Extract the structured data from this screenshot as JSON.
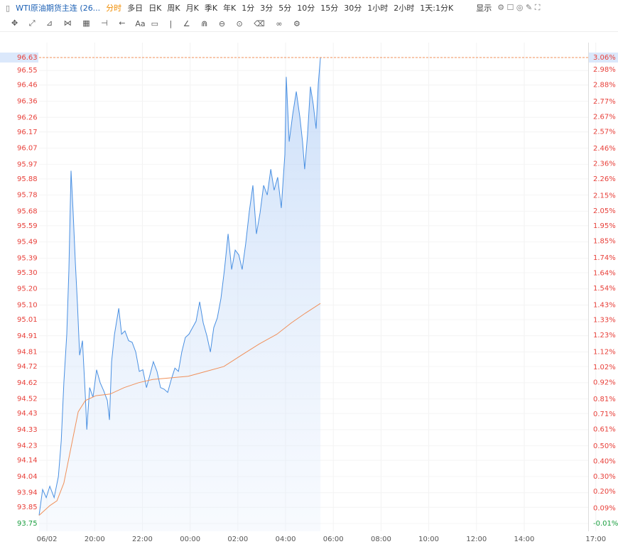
{
  "toolbar": {
    "symbol": "WTI原油期货主连 (26...",
    "periods": [
      "分时",
      "多日",
      "日K",
      "周K",
      "月K",
      "季K",
      "年K",
      "1分",
      "3分",
      "5分",
      "10分",
      "15分",
      "30分",
      "1小时",
      "2小时",
      "1天:1分K"
    ],
    "display": "显示",
    "text_tool": "Aa"
  },
  "chart_data": {
    "type": "line",
    "xlim": [
      -0.33,
      22.68
    ],
    "xticks": [
      {
        "value": 0,
        "label": "06/02"
      },
      {
        "value": 2,
        "label": "20:00"
      },
      {
        "value": 4,
        "label": "22:00"
      },
      {
        "value": 6,
        "label": "00:00"
      },
      {
        "value": 8,
        "label": "02:00"
      },
      {
        "value": 10,
        "label": "04:00"
      },
      {
        "value": 12,
        "label": "06:00"
      },
      {
        "value": 14,
        "label": "08:00"
      },
      {
        "value": 16,
        "label": "10:00"
      },
      {
        "value": 18,
        "label": "12:00"
      },
      {
        "value": 20,
        "label": "14:00"
      },
      {
        "value": 23,
        "label": "17:00"
      }
    ],
    "ylim": [
      93.75,
      96.63
    ],
    "yticks": [
      96.63,
      96.55,
      96.46,
      96.36,
      96.26,
      96.17,
      96.07,
      95.97,
      95.88,
      95.78,
      95.68,
      95.59,
      95.49,
      95.39,
      {
        "value": 95.3,
        "label": "95.30"
      },
      {
        "value": 95.2,
        "label": "95.20"
      },
      {
        "value": 95.1,
        "label": "95.10"
      },
      95.01,
      94.91,
      94.81,
      94.72,
      94.62,
      94.52,
      94.43,
      94.33,
      94.23,
      94.14,
      94.04,
      93.94,
      93.85,
      93.75
    ],
    "y2lim": [
      -0.01,
      3.06
    ],
    "y2ticks": [
      {
        "value": 3.06,
        "label": "3.06%"
      },
      {
        "value": 2.98,
        "label": "2.98%"
      },
      {
        "value": 2.88,
        "label": "2.88%"
      },
      {
        "value": 2.77,
        "label": "2.77%"
      },
      {
        "value": 2.67,
        "label": "2.67%"
      },
      {
        "value": 2.57,
        "label": "2.57%"
      },
      {
        "value": 2.46,
        "label": "2.46%"
      },
      {
        "value": 2.36,
        "label": "2.36%"
      },
      {
        "value": 2.26,
        "label": "2.26%"
      },
      {
        "value": 2.15,
        "label": "2.15%"
      },
      {
        "value": 2.05,
        "label": "2.05%"
      },
      {
        "value": 1.95,
        "label": "1.95%"
      },
      {
        "value": 1.85,
        "label": "1.85%"
      },
      {
        "value": 1.74,
        "label": "1.74%"
      },
      {
        "value": 1.64,
        "label": "1.64%"
      },
      {
        "value": 1.54,
        "label": "1.54%"
      },
      {
        "value": 1.43,
        "label": "1.43%"
      },
      {
        "value": 1.33,
        "label": "1.33%"
      },
      {
        "value": 1.23,
        "label": "1.23%"
      },
      {
        "value": 1.12,
        "label": "1.12%"
      },
      {
        "value": 1.02,
        "label": "1.02%"
      },
      {
        "value": 0.92,
        "label": "0.92%"
      },
      {
        "value": 0.81,
        "label": "0.81%"
      },
      {
        "value": 0.71,
        "label": "0.71%"
      },
      {
        "value": 0.61,
        "label": "0.61%"
      },
      {
        "value": 0.5,
        "label": "0.50%"
      },
      {
        "value": 0.4,
        "label": "0.40%"
      },
      {
        "value": 0.3,
        "label": "0.30%"
      },
      {
        "value": 0.2,
        "label": "0.20%"
      },
      {
        "value": 0.09,
        "label": "0.09%"
      },
      {
        "value": -0.01,
        "label": "-0.01%"
      }
    ],
    "grid": true,
    "series": [
      {
        "color": "#4a90e2",
        "x": [
          -0.33,
          -0.18,
          -0.03,
          0.12,
          0.3,
          0.48,
          0.6,
          0.71,
          0.83,
          0.92,
          1.01,
          1.1,
          1.19,
          1.28,
          1.37,
          1.49,
          1.61,
          1.67,
          1.79,
          1.93,
          2.08,
          2.23,
          2.38,
          2.53,
          2.62,
          2.71,
          2.83,
          3.01,
          3.13,
          3.27,
          3.42,
          3.57,
          3.72,
          3.87,
          4.02,
          4.17,
          4.32,
          4.46,
          4.61,
          4.76,
          4.91,
          5.06,
          5.21,
          5.36,
          5.51,
          5.65,
          5.8,
          5.95,
          6.1,
          6.25,
          6.4,
          6.55,
          6.7,
          6.85,
          6.99,
          7.14,
          7.29,
          7.44,
          7.59,
          7.74,
          7.89,
          8.04,
          8.18,
          8.33,
          8.48,
          8.63,
          8.78,
          8.93,
          9.08,
          9.23,
          9.38,
          9.52,
          9.67,
          9.82,
          9.97,
          10.03,
          10.15,
          10.3,
          10.45,
          10.6,
          10.71,
          10.8,
          10.92,
          11.04,
          11.16,
          11.28,
          11.37,
          11.46
        ],
        "values": [
          93.8,
          93.96,
          93.91,
          93.98,
          93.91,
          94.04,
          94.26,
          94.62,
          94.92,
          95.32,
          95.93,
          95.67,
          95.36,
          95.1,
          94.79,
          94.88,
          94.53,
          94.33,
          94.59,
          94.53,
          94.7,
          94.62,
          94.57,
          94.51,
          94.39,
          94.75,
          94.92,
          95.08,
          94.92,
          94.94,
          94.88,
          94.87,
          94.81,
          94.69,
          94.7,
          94.59,
          94.67,
          94.75,
          94.69,
          94.59,
          94.58,
          94.56,
          94.64,
          94.71,
          94.69,
          94.81,
          94.9,
          94.92,
          94.96,
          95.0,
          95.12,
          94.99,
          94.91,
          94.81,
          94.96,
          95.02,
          95.14,
          95.32,
          95.54,
          95.32,
          95.44,
          95.41,
          95.32,
          95.48,
          95.68,
          95.84,
          95.54,
          95.67,
          95.84,
          95.78,
          95.94,
          95.81,
          95.89,
          95.7,
          96.03,
          96.51,
          96.11,
          96.28,
          96.42,
          96.26,
          96.11,
          95.94,
          96.15,
          96.45,
          96.34,
          96.19,
          96.47,
          96.63
        ]
      },
      {
        "color": "#f0905a",
        "x": [
          -0.33,
          0.12,
          0.42,
          0.71,
          1.01,
          1.31,
          1.61,
          2.05,
          2.65,
          3.24,
          3.84,
          4.43,
          5.18,
          5.92,
          6.67,
          7.41,
          8.15,
          8.9,
          9.64,
          10.24,
          10.83,
          11.46
        ],
        "values": [
          93.8,
          93.86,
          93.89,
          94.0,
          94.22,
          94.44,
          94.51,
          94.54,
          94.55,
          94.59,
          94.62,
          94.64,
          94.65,
          94.66,
          94.69,
          94.72,
          94.79,
          94.86,
          94.92,
          94.99,
          95.05,
          95.11
        ]
      }
    ]
  }
}
